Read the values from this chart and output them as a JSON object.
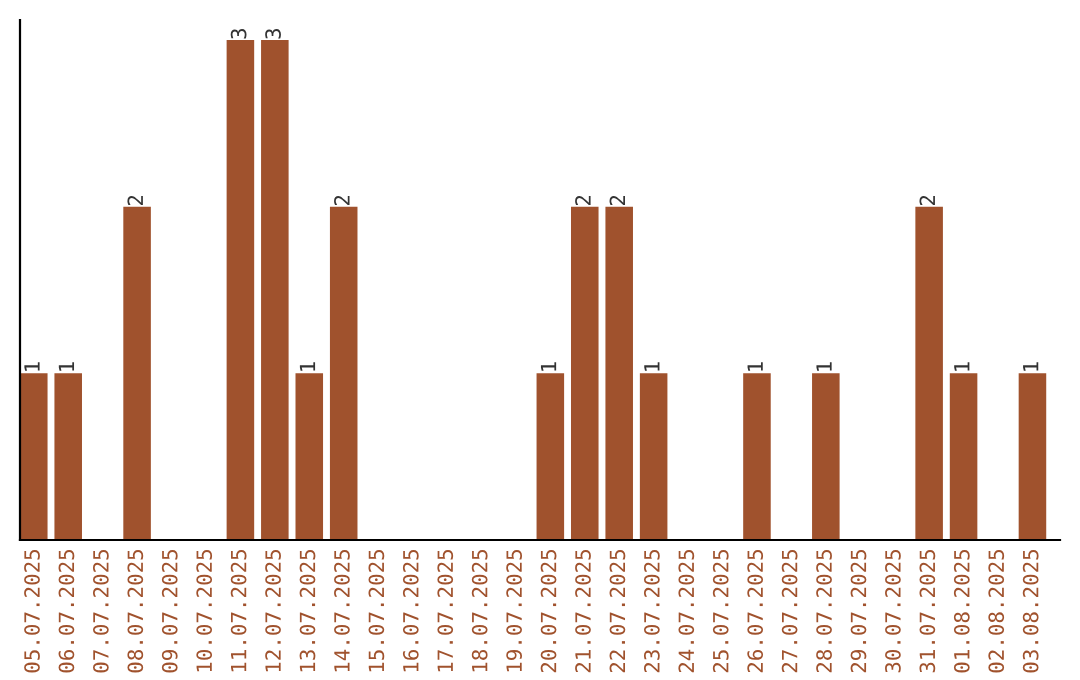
{
  "chart_data": {
    "type": "bar",
    "categories": [
      "05.07.2025",
      "06.07.2025",
      "07.07.2025",
      "08.07.2025",
      "09.07.2025",
      "10.07.2025",
      "11.07.2025",
      "12.07.2025",
      "13.07.2025",
      "14.07.2025",
      "15.07.2025",
      "16.07.2025",
      "17.07.2025",
      "18.07.2025",
      "19.07.2025",
      "20.07.2025",
      "21.07.2025",
      "22.07.2025",
      "23.07.2025",
      "24.07.2025",
      "25.07.2025",
      "26.07.2025",
      "27.07.2025",
      "28.07.2025",
      "29.07.2025",
      "30.07.2025",
      "31.07.2025",
      "01.08.2025",
      "02.08.2025",
      "03.08.2025"
    ],
    "values": [
      1,
      1,
      0,
      2,
      0,
      0,
      3,
      3,
      1,
      2,
      0,
      0,
      0,
      0,
      0,
      1,
      2,
      2,
      1,
      0,
      0,
      1,
      0,
      1,
      0,
      0,
      2,
      1,
      0,
      1
    ],
    "value_labels": [
      "1",
      "1",
      null,
      "2",
      null,
      null,
      "3",
      "3",
      "1",
      "2",
      null,
      null,
      null,
      null,
      null,
      "1",
      "2",
      "2",
      "1",
      null,
      null,
      "1",
      null,
      "1",
      null,
      null,
      "2",
      "1",
      null,
      "1"
    ],
    "color": "#a0522d",
    "grid": false,
    "legend": false
  }
}
